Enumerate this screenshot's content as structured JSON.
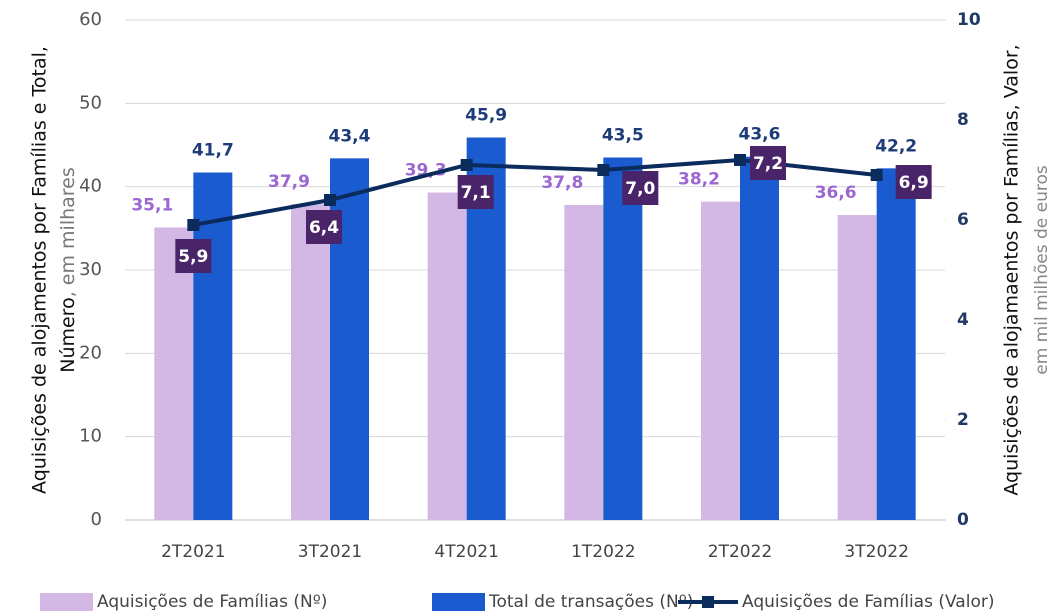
{
  "chart_data": {
    "type": "bar_line",
    "categories": [
      "2T2021",
      "3T2021",
      "4T2021",
      "1T2022",
      "2T2022",
      "3T2022"
    ],
    "series": [
      {
        "name": "Aquisições de Famílias (Nº)",
        "color": "#d3b8e5",
        "type": "bar",
        "label_color": "#9b68d2",
        "values": [
          35.1,
          37.9,
          39.3,
          37.8,
          38.2,
          36.6
        ],
        "value_labels": [
          "35,1",
          "37,9",
          "39,3",
          "37,8",
          "38,2",
          "36,6"
        ]
      },
      {
        "name": "Total de transações (Nº)",
        "color": "#1a5cd0",
        "type": "bar",
        "label_color": "#1f3c7a",
        "values": [
          41.7,
          43.4,
          45.9,
          43.5,
          43.6,
          42.2
        ],
        "value_labels": [
          "41,7",
          "43,4",
          "45,9",
          "43,5",
          "43,6",
          "42,2"
        ]
      },
      {
        "name": "Aquisições de Famílias (Valor)",
        "color": "#0b2b5c",
        "type": "line",
        "axis": "y2",
        "label_color": "#4a2468",
        "values": [
          5.9,
          6.4,
          7.1,
          7.0,
          7.2,
          6.9
        ],
        "value_labels": [
          "5,9",
          "6,4",
          "7,1",
          "7,0",
          "7,2",
          "6,9"
        ]
      }
    ],
    "ylim": [
      0,
      60
    ],
    "yticks": [
      0,
      10,
      20,
      30,
      40,
      50,
      60
    ],
    "y2lim": [
      0,
      10
    ],
    "y2ticks": [
      0,
      2,
      4,
      6,
      8,
      10
    ],
    "grid": true,
    "ylabel": {
      "line1": "Aquisições de alojamentos por Famílias e Total,",
      "line2": "Número",
      "note": ", em milhares"
    },
    "y2label": {
      "main": "Aquisições de alojamaentos por Famílias, Valor,",
      "note": "em mil milhões de euros"
    },
    "legend": "bottom"
  }
}
